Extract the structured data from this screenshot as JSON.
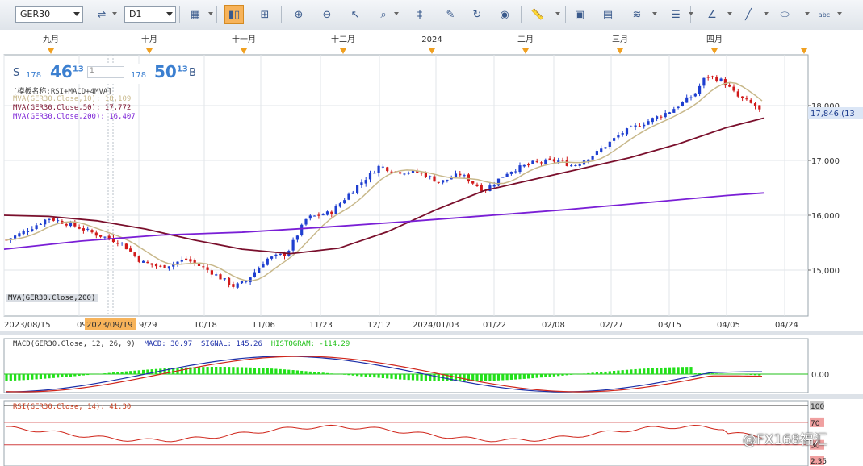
{
  "toolbar": {
    "symbol": "GER30",
    "timeframe": "D1",
    "buttons": [
      {
        "name": "chart-type-icon",
        "glyph": "▦"
      },
      {
        "name": "candles-icon",
        "glyph": "▮▯",
        "active": true
      },
      {
        "name": "bar-chart-icon",
        "glyph": "⊞"
      },
      {
        "name": "zoom-in-icon",
        "glyph": "⊕"
      },
      {
        "name": "zoom-out-icon",
        "glyph": "⊖"
      },
      {
        "name": "cursor-icon",
        "glyph": "↖"
      },
      {
        "name": "crosshair-icon",
        "glyph": "⌕"
      },
      {
        "name": "fibo-icon",
        "glyph": "‡"
      },
      {
        "name": "properties-icon",
        "glyph": "✎"
      },
      {
        "name": "refresh-icon",
        "glyph": "↻"
      },
      {
        "name": "globe-icon",
        "glyph": "◉"
      },
      {
        "name": "ruler-icon",
        "glyph": "📏"
      },
      {
        "name": "image-icon",
        "glyph": "▣"
      },
      {
        "name": "window-icon",
        "glyph": "▤"
      },
      {
        "name": "lines-icon",
        "glyph": "≋"
      },
      {
        "name": "hlines-icon",
        "glyph": "☰"
      },
      {
        "name": "angle-icon",
        "glyph": "∠"
      },
      {
        "name": "pen-icon",
        "glyph": "╱"
      },
      {
        "name": "ellipse-icon",
        "glyph": "⬭"
      },
      {
        "name": "text-icon",
        "glyph": "abc"
      }
    ]
  },
  "quote": {
    "sell_label": "S",
    "sell_prefix": "178",
    "sell_big": "46",
    "sell_sup": "13",
    "amount": "1",
    "buy_prefix": "178",
    "buy_big": "50",
    "buy_sup": "13",
    "buy_label": "B"
  },
  "indicators": {
    "template": "[模板名称:RSI+MACD+4MVA]",
    "mva10": "MVA(GER30.Close,10): 18,109",
    "mva50": "MVA(GER30.Close,50): 17,772",
    "mva200": "MVA(GER30.Close,200): 16,407",
    "mva200_tag": "MVA(GER30.Close,200)"
  },
  "months": [
    "九月",
    "十月",
    "十一月",
    "十二月",
    "2024",
    "二月",
    "三月",
    "四月"
  ],
  "dates": [
    "2023/08/15",
    "09",
    "2023/09/19",
    "9/29",
    "10/18",
    "11/06",
    "11/23",
    "12/12",
    "2024/01/03",
    "01/22",
    "02/08",
    "02/27",
    "03/15",
    "04/05",
    "04/24"
  ],
  "price_axis": [
    "18,000",
    "17,000",
    "16,000",
    "15,000"
  ],
  "current_price": "17,846.(13",
  "macd": {
    "label": "MACD(GER30.Close, 12, 26, 9)",
    "macd": "MACD: 30.97",
    "signal": "SIGNAL: 145.26",
    "hist": "HISTOGRAM: -114.29",
    "zero": "0.00"
  },
  "rsi": {
    "label": "RSI(GER30.Close, 14): 41.30",
    "levels": [
      "100",
      "70",
      "30",
      "2.35"
    ]
  },
  "watermark": "@FX168福汇",
  "colors": {
    "up": "#1f3fd0",
    "down": "#d11a1a",
    "mva10": "#c8b88a",
    "mva50": "#7a0f2c",
    "mva200": "#7a1fd6",
    "macd": "#1c2fa8",
    "signal": "#d0261b",
    "hist": "#22e01a",
    "accent": "#f7b35a"
  },
  "chart_data": {
    "type": "candlestick",
    "symbol": "GER30",
    "timeframe": "D1",
    "ylim": [
      14500,
      18700
    ],
    "candles": []
  }
}
